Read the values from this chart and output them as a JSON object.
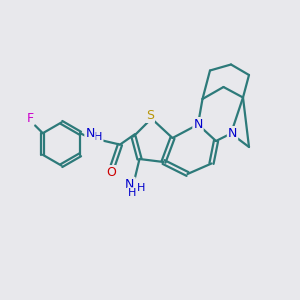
{
  "bg_color": "#e8e8ec",
  "bond_color": "#2d7a7a",
  "atom_colors": {
    "C": "#2d7a7a",
    "N": "#0000cc",
    "S": "#b8960a",
    "O": "#cc0000",
    "F": "#cc00cc"
  },
  "bond_width": 1.6,
  "font_size": 9,
  "figsize": [
    3.0,
    3.0
  ],
  "dpi": 100,
  "xlim": [
    0,
    10
  ],
  "ylim": [
    0,
    10
  ]
}
